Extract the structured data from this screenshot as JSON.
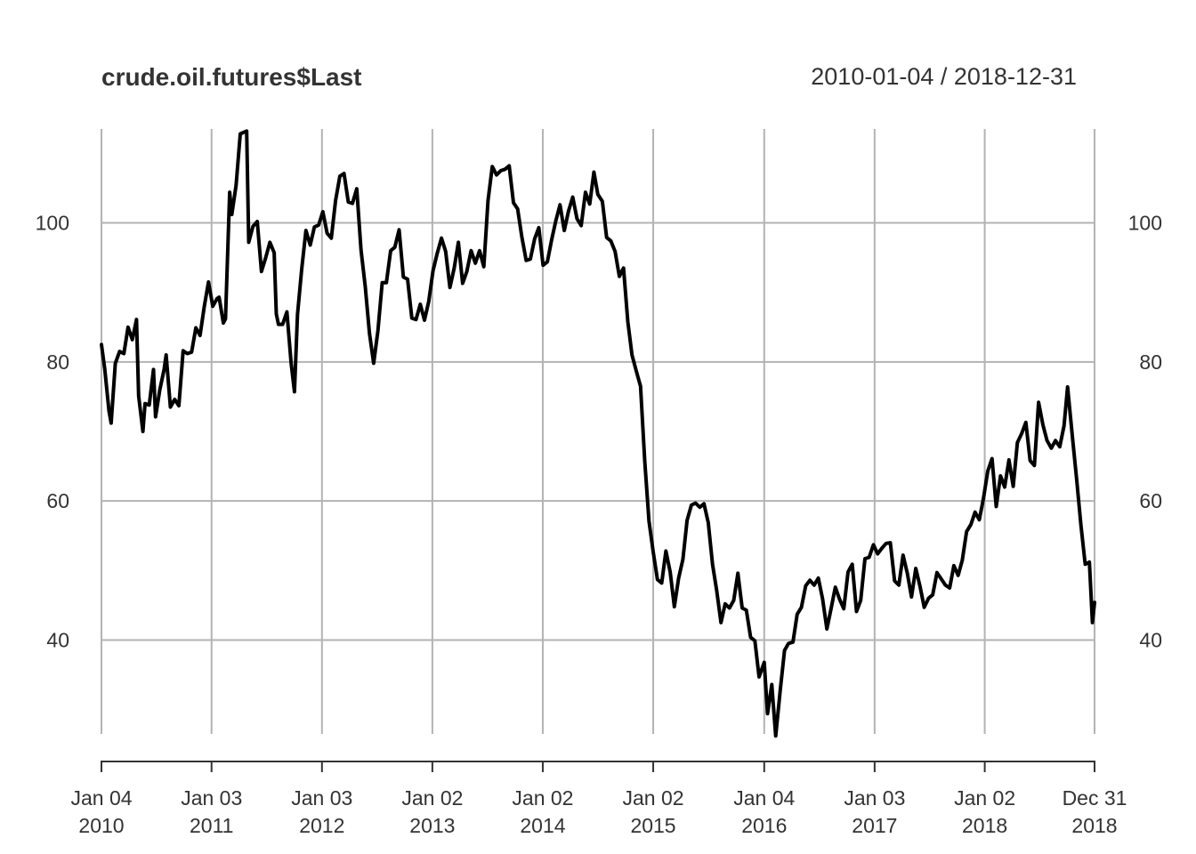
{
  "chart_data": {
    "type": "line",
    "title": "crude.oil.futures$Last",
    "date_range_label": "2010-01-04 / 2018-12-31",
    "xlabel": "",
    "ylabel": "",
    "x_start": "2010-01-04",
    "x_end": "2018-12-31",
    "ylim": [
      26.5,
      113.5
    ],
    "grid": true,
    "y_ticks": [
      {
        "value": 40,
        "label": "40"
      },
      {
        "value": 60,
        "label": "60"
      },
      {
        "value": 80,
        "label": "80"
      },
      {
        "value": 100,
        "label": "100"
      }
    ],
    "x_ticks": [
      {
        "date": "2010-01-04",
        "line1": "Jan 04",
        "line2": "2010"
      },
      {
        "date": "2011-01-03",
        "line1": "Jan 03",
        "line2": "2011"
      },
      {
        "date": "2012-01-03",
        "line1": "Jan 03",
        "line2": "2012"
      },
      {
        "date": "2013-01-02",
        "line1": "Jan 02",
        "line2": "2013"
      },
      {
        "date": "2014-01-02",
        "line1": "Jan 02",
        "line2": "2014"
      },
      {
        "date": "2015-01-02",
        "line1": "Jan 02",
        "line2": "2015"
      },
      {
        "date": "2016-01-04",
        "line1": "Jan 04",
        "line2": "2016"
      },
      {
        "date": "2017-01-03",
        "line1": "Jan 03",
        "line2": "2017"
      },
      {
        "date": "2018-01-02",
        "line1": "Jan 02",
        "line2": "2018"
      },
      {
        "date": "2018-12-31",
        "line1": "Dec 31",
        "line2": "2018"
      }
    ],
    "series": [
      {
        "values": [
          [
            "2010-01-04",
            82.5
          ],
          [
            "2010-01-15",
            79.0
          ],
          [
            "2010-01-29",
            72.9
          ],
          [
            "2010-02-05",
            71.2
          ],
          [
            "2010-02-19",
            79.8
          ],
          [
            "2010-03-05",
            81.5
          ],
          [
            "2010-03-19",
            81.2
          ],
          [
            "2010-04-02",
            85.0
          ],
          [
            "2010-04-16",
            83.2
          ],
          [
            "2010-04-30",
            86.1
          ],
          [
            "2010-05-07",
            75.1
          ],
          [
            "2010-05-21",
            70.0
          ],
          [
            "2010-05-28",
            74.0
          ],
          [
            "2010-06-11",
            73.8
          ],
          [
            "2010-06-25",
            78.9
          ],
          [
            "2010-07-02",
            72.1
          ],
          [
            "2010-07-16",
            76.0
          ],
          [
            "2010-07-30",
            78.9
          ],
          [
            "2010-08-06",
            81.0
          ],
          [
            "2010-08-20",
            73.5
          ],
          [
            "2010-09-03",
            74.6
          ],
          [
            "2010-09-17",
            73.7
          ],
          [
            "2010-10-01",
            81.6
          ],
          [
            "2010-10-15",
            81.2
          ],
          [
            "2010-10-29",
            81.4
          ],
          [
            "2010-11-12",
            84.9
          ],
          [
            "2010-11-26",
            83.8
          ],
          [
            "2010-12-10",
            88.0
          ],
          [
            "2010-12-24",
            91.5
          ],
          [
            "2011-01-07",
            88.0
          ],
          [
            "2011-01-21",
            89.1
          ],
          [
            "2011-01-28",
            89.3
          ],
          [
            "2011-02-11",
            85.6
          ],
          [
            "2011-02-18",
            86.2
          ],
          [
            "2011-03-04",
            104.4
          ],
          [
            "2011-03-11",
            101.2
          ],
          [
            "2011-03-25",
            105.4
          ],
          [
            "2011-04-08",
            112.8
          ],
          [
            "2011-04-29",
            113.2
          ],
          [
            "2011-05-06",
            97.2
          ],
          [
            "2011-05-20",
            99.5
          ],
          [
            "2011-06-03",
            100.2
          ],
          [
            "2011-06-17",
            93.0
          ],
          [
            "2011-07-01",
            95.0
          ],
          [
            "2011-07-15",
            97.2
          ],
          [
            "2011-07-29",
            95.7
          ],
          [
            "2011-08-05",
            86.9
          ],
          [
            "2011-08-12",
            85.4
          ],
          [
            "2011-08-26",
            85.4
          ],
          [
            "2011-09-09",
            87.2
          ],
          [
            "2011-09-23",
            79.9
          ],
          [
            "2011-10-04",
            75.7
          ],
          [
            "2011-10-14",
            86.8
          ],
          [
            "2011-10-28",
            93.3
          ],
          [
            "2011-11-11",
            98.9
          ],
          [
            "2011-11-25",
            96.8
          ],
          [
            "2011-12-09",
            99.4
          ],
          [
            "2011-12-23",
            99.7
          ],
          [
            "2012-01-06",
            101.6
          ],
          [
            "2012-01-20",
            98.5
          ],
          [
            "2012-02-03",
            97.8
          ],
          [
            "2012-02-17",
            103.2
          ],
          [
            "2012-03-02",
            106.7
          ],
          [
            "2012-03-16",
            107.1
          ],
          [
            "2012-03-30",
            103.0
          ],
          [
            "2012-04-13",
            102.8
          ],
          [
            "2012-04-27",
            104.9
          ],
          [
            "2012-05-11",
            96.1
          ],
          [
            "2012-05-25",
            90.9
          ],
          [
            "2012-06-08",
            84.1
          ],
          [
            "2012-06-22",
            79.8
          ],
          [
            "2012-07-06",
            84.5
          ],
          [
            "2012-07-20",
            91.4
          ],
          [
            "2012-08-03",
            91.4
          ],
          [
            "2012-08-17",
            96.0
          ],
          [
            "2012-08-31",
            96.5
          ],
          [
            "2012-09-14",
            99.0
          ],
          [
            "2012-09-28",
            92.2
          ],
          [
            "2012-10-12",
            91.9
          ],
          [
            "2012-10-26",
            86.3
          ],
          [
            "2012-11-09",
            86.1
          ],
          [
            "2012-11-23",
            88.3
          ],
          [
            "2012-12-07",
            86.0
          ],
          [
            "2012-12-21",
            88.7
          ],
          [
            "2013-01-04",
            93.1
          ],
          [
            "2013-01-18",
            95.6
          ],
          [
            "2013-02-01",
            97.8
          ],
          [
            "2013-02-15",
            95.9
          ],
          [
            "2013-03-01",
            90.7
          ],
          [
            "2013-03-15",
            93.5
          ],
          [
            "2013-03-29",
            97.2
          ],
          [
            "2013-04-12",
            91.3
          ],
          [
            "2013-04-26",
            93.0
          ],
          [
            "2013-05-10",
            96.0
          ],
          [
            "2013-05-24",
            94.2
          ],
          [
            "2013-06-07",
            96.0
          ],
          [
            "2013-06-21",
            93.7
          ],
          [
            "2013-07-05",
            103.2
          ],
          [
            "2013-07-19",
            108.1
          ],
          [
            "2013-08-02",
            106.9
          ],
          [
            "2013-08-16",
            107.5
          ],
          [
            "2013-08-30",
            107.7
          ],
          [
            "2013-09-13",
            108.2
          ],
          [
            "2013-09-27",
            102.9
          ],
          [
            "2013-10-11",
            102.0
          ],
          [
            "2013-10-25",
            97.9
          ],
          [
            "2013-11-08",
            94.6
          ],
          [
            "2013-11-22",
            94.8
          ],
          [
            "2013-12-06",
            97.7
          ],
          [
            "2013-12-20",
            99.3
          ],
          [
            "2014-01-03",
            93.9
          ],
          [
            "2014-01-17",
            94.4
          ],
          [
            "2014-01-31",
            97.5
          ],
          [
            "2014-02-14",
            100.3
          ],
          [
            "2014-02-28",
            102.6
          ],
          [
            "2014-03-14",
            98.9
          ],
          [
            "2014-03-28",
            101.7
          ],
          [
            "2014-04-11",
            103.7
          ],
          [
            "2014-04-25",
            100.6
          ],
          [
            "2014-05-09",
            99.6
          ],
          [
            "2014-05-23",
            104.4
          ],
          [
            "2014-06-06",
            102.7
          ],
          [
            "2014-06-20",
            107.3
          ],
          [
            "2014-07-03",
            104.1
          ],
          [
            "2014-07-18",
            103.1
          ],
          [
            "2014-08-01",
            97.9
          ],
          [
            "2014-08-15",
            97.4
          ],
          [
            "2014-08-29",
            95.9
          ],
          [
            "2014-09-12",
            92.3
          ],
          [
            "2014-09-26",
            93.5
          ],
          [
            "2014-10-10",
            85.8
          ],
          [
            "2014-10-24",
            81.0
          ],
          [
            "2014-11-07",
            78.7
          ],
          [
            "2014-11-21",
            76.5
          ],
          [
            "2014-12-05",
            65.8
          ],
          [
            "2014-12-19",
            57.1
          ],
          [
            "2015-01-02",
            52.7
          ],
          [
            "2015-01-16",
            48.7
          ],
          [
            "2015-01-30",
            48.2
          ],
          [
            "2015-02-13",
            52.8
          ],
          [
            "2015-02-27",
            49.8
          ],
          [
            "2015-03-13",
            44.8
          ],
          [
            "2015-03-27",
            48.9
          ],
          [
            "2015-04-10",
            51.6
          ],
          [
            "2015-04-24",
            57.2
          ],
          [
            "2015-05-08",
            59.4
          ],
          [
            "2015-05-22",
            59.7
          ],
          [
            "2015-06-05",
            59.1
          ],
          [
            "2015-06-19",
            59.6
          ],
          [
            "2015-07-03",
            56.9
          ],
          [
            "2015-07-17",
            50.9
          ],
          [
            "2015-07-31",
            47.1
          ],
          [
            "2015-08-14",
            42.5
          ],
          [
            "2015-08-28",
            45.2
          ],
          [
            "2015-09-11",
            44.6
          ],
          [
            "2015-09-25",
            45.7
          ],
          [
            "2015-10-09",
            49.6
          ],
          [
            "2015-10-23",
            44.6
          ],
          [
            "2015-11-06",
            44.3
          ],
          [
            "2015-11-20",
            40.4
          ],
          [
            "2015-12-04",
            39.9
          ],
          [
            "2015-12-18",
            34.7
          ],
          [
            "2016-01-04",
            36.8
          ],
          [
            "2016-01-15",
            29.4
          ],
          [
            "2016-01-29",
            33.6
          ],
          [
            "2016-02-11",
            26.2
          ],
          [
            "2016-02-26",
            32.8
          ],
          [
            "2016-03-11",
            38.5
          ],
          [
            "2016-03-24",
            39.5
          ],
          [
            "2016-04-08",
            39.7
          ],
          [
            "2016-04-22",
            43.7
          ],
          [
            "2016-05-06",
            44.7
          ],
          [
            "2016-05-20",
            47.8
          ],
          [
            "2016-06-03",
            48.6
          ],
          [
            "2016-06-17",
            47.9
          ],
          [
            "2016-07-01",
            48.9
          ],
          [
            "2016-07-15",
            45.9
          ],
          [
            "2016-07-29",
            41.6
          ],
          [
            "2016-08-12",
            44.5
          ],
          [
            "2016-08-26",
            47.6
          ],
          [
            "2016-09-09",
            45.9
          ],
          [
            "2016-09-23",
            44.5
          ],
          [
            "2016-10-07",
            49.8
          ],
          [
            "2016-10-21",
            50.9
          ],
          [
            "2016-11-04",
            44.1
          ],
          [
            "2016-11-18",
            45.7
          ],
          [
            "2016-12-02",
            51.7
          ],
          [
            "2016-12-16",
            51.9
          ],
          [
            "2016-12-30",
            53.7
          ],
          [
            "2017-01-13",
            52.4
          ],
          [
            "2017-01-27",
            53.2
          ],
          [
            "2017-02-10",
            53.9
          ],
          [
            "2017-02-24",
            54.0
          ],
          [
            "2017-03-10",
            48.5
          ],
          [
            "2017-03-24",
            47.9
          ],
          [
            "2017-04-07",
            52.2
          ],
          [
            "2017-04-21",
            49.6
          ],
          [
            "2017-05-05",
            46.2
          ],
          [
            "2017-05-19",
            50.3
          ],
          [
            "2017-06-02",
            47.7
          ],
          [
            "2017-06-16",
            44.7
          ],
          [
            "2017-06-30",
            46.0
          ],
          [
            "2017-07-14",
            46.5
          ],
          [
            "2017-07-28",
            49.7
          ],
          [
            "2017-08-11",
            48.8
          ],
          [
            "2017-08-25",
            47.9
          ],
          [
            "2017-09-08",
            47.5
          ],
          [
            "2017-09-22",
            50.7
          ],
          [
            "2017-10-06",
            49.3
          ],
          [
            "2017-10-20",
            51.5
          ],
          [
            "2017-11-03",
            55.6
          ],
          [
            "2017-11-17",
            56.6
          ],
          [
            "2017-12-01",
            58.4
          ],
          [
            "2017-12-15",
            57.3
          ],
          [
            "2017-12-29",
            60.4
          ],
          [
            "2018-01-12",
            64.3
          ],
          [
            "2018-01-26",
            66.1
          ],
          [
            "2018-02-09",
            59.2
          ],
          [
            "2018-02-23",
            63.6
          ],
          [
            "2018-03-09",
            62.0
          ],
          [
            "2018-03-23",
            65.9
          ],
          [
            "2018-04-06",
            62.1
          ],
          [
            "2018-04-20",
            68.4
          ],
          [
            "2018-05-04",
            69.7
          ],
          [
            "2018-05-18",
            71.3
          ],
          [
            "2018-06-01",
            65.8
          ],
          [
            "2018-06-15",
            65.1
          ],
          [
            "2018-06-29",
            74.2
          ],
          [
            "2018-07-13",
            71.0
          ],
          [
            "2018-07-27",
            68.7
          ],
          [
            "2018-08-10",
            67.6
          ],
          [
            "2018-08-24",
            68.7
          ],
          [
            "2018-09-07",
            67.8
          ],
          [
            "2018-09-21",
            70.8
          ],
          [
            "2018-10-03",
            76.4
          ],
          [
            "2018-10-19",
            69.1
          ],
          [
            "2018-11-02",
            63.1
          ],
          [
            "2018-11-16",
            56.5
          ],
          [
            "2018-11-30",
            50.9
          ],
          [
            "2018-12-14",
            51.2
          ],
          [
            "2018-12-24",
            42.5
          ],
          [
            "2018-12-31",
            45.4
          ]
        ]
      }
    ]
  }
}
